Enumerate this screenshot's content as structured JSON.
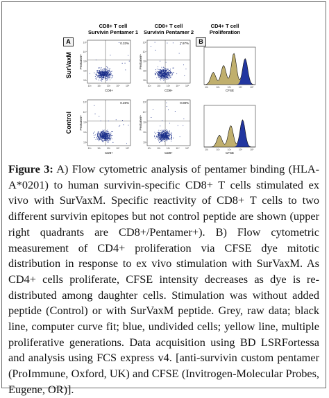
{
  "figure": {
    "headers": [
      "CD8+ T cell\nSurvivin Pentamer 1",
      "CD8+ T cell\nSurvivin Pentamer 2",
      "CD4+ T cell\nProliferation"
    ],
    "panel_labels": [
      "A",
      "B"
    ],
    "row_labels": [
      "SurVaxM",
      "Control"
    ],
    "dot_plots": [
      {
        "row": "SurVaxM",
        "column": "Survivin Pentamer 1",
        "quadrant_percent": "0.33%",
        "y_axis": "Pentamer+",
        "x_axis": "CD8+"
      },
      {
        "row": "SurVaxM",
        "column": "Survivin Pentamer 2",
        "quadrant_percent": "7.97%",
        "y_axis": "Pentamer+",
        "x_axis": "CD8+"
      },
      {
        "row": "Control",
        "column": "Survivin Pentamer 1",
        "quadrant_percent": "0.26%",
        "y_axis": "Pentamer+",
        "x_axis": "CD8+"
      },
      {
        "row": "Control",
        "column": "Survivin Pentamer 2",
        "quadrant_percent": "0.08%",
        "y_axis": "Pentamer+",
        "x_axis": "CD8+"
      }
    ],
    "histograms": [
      {
        "row": "SurVaxM",
        "x_axis": "CFSE"
      },
      {
        "row": "Control",
        "x_axis": "CFSE"
      }
    ],
    "tick_labels": [
      "10¹",
      "10²",
      "10³",
      "10⁴",
      "10⁵"
    ],
    "colors": {
      "dots": "#1b2f8a",
      "blue_fill": "#2236a0",
      "yellow_fill": "#c8b25a",
      "grey_fill": "#a9a9a9"
    }
  },
  "caption": {
    "label": "Figure 3:",
    "text": "A) Flow cytometric analysis of pentamer binding (HLA-A*0201) to human survivin-specific CD8+ T cells stimulated ex vivo with SurVaxM. Specific reactivity of CD8+ T cells to two different survivin epitopes but not control peptide are shown (upper right quadrants are CD8+/Pentamer+). B) Flow cytometric measurement of CD4+ proliferation via CFSE dye mitotic distribution in response to ex vivo stimulation with SurVaxM. As CD4+ cells proliferate, CFSE intensity decreases as dye is re-distributed among daughter cells. Stimulation was without added peptide (Control) or with SurVaxM peptide. Grey, raw data; black line, computer curve fit; blue, undivided cells; yellow line, multiple proliferative generations. Data acquisition using BD LSRFortessa and analysis using FCS express v4. [anti-survivin custom pentamer (ProImmune, Oxford, UK) and CFSE (Invitrogen-Molecular Probes, Eugene, OR)]."
  }
}
